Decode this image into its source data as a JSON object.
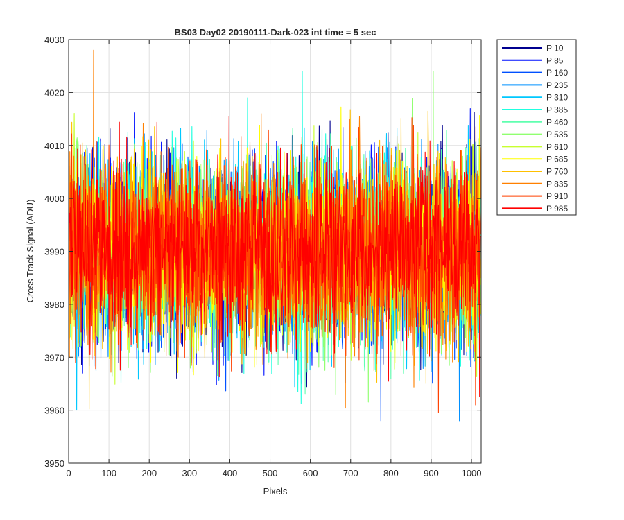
{
  "chart_data": {
    "type": "line",
    "title": "BS03 Day02 20190111-Dark-023 int time = 5 sec",
    "xlabel": "Pixels",
    "ylabel": "Cross Track Signal (ADU)",
    "xlim": [
      0,
      1024
    ],
    "ylim": [
      3950,
      4030
    ],
    "xticks": [
      0,
      100,
      200,
      300,
      400,
      500,
      600,
      700,
      800,
      900,
      1000
    ],
    "yticks": [
      3950,
      3960,
      3970,
      3980,
      3990,
      4000,
      4010,
      4020,
      4030
    ],
    "grid": true,
    "legend_position": "outside-top-right",
    "n_points": 1024,
    "mean_level": 3990,
    "series": [
      {
        "name": "P 10",
        "color": "#00008f",
        "seed": 11
      },
      {
        "name": "P 85",
        "color": "#0010ff",
        "seed": 23
      },
      {
        "name": "P 160",
        "color": "#0050ff",
        "seed": 37
      },
      {
        "name": "P 235",
        "color": "#0090ff",
        "seed": 41
      },
      {
        "name": "P 310",
        "color": "#00c8ff",
        "seed": 53
      },
      {
        "name": "P 385",
        "color": "#20ffe0",
        "seed": 67
      },
      {
        "name": "P 460",
        "color": "#60ffb0",
        "seed": 71
      },
      {
        "name": "P 535",
        "color": "#90ff70",
        "seed": 83
      },
      {
        "name": "P 610",
        "color": "#c8ff30",
        "seed": 97
      },
      {
        "name": "P 685",
        "color": "#ffff00",
        "seed": 101
      },
      {
        "name": "P 760",
        "color": "#ffc000",
        "seed": 113
      },
      {
        "name": "P 835",
        "color": "#ff8000",
        "seed": 127
      },
      {
        "name": "P 910",
        "color": "#ff4000",
        "seed": 131
      },
      {
        "name": "P 985",
        "color": "#ff0000",
        "seed": 149
      }
    ],
    "annotated_extremes": [
      {
        "series": "P 835",
        "x": 62,
        "y": 4028
      },
      {
        "series": "P 160",
        "x": 775,
        "y": 3958
      },
      {
        "series": "P 310",
        "x": 20,
        "y": 3960
      },
      {
        "series": "P 385",
        "x": 580,
        "y": 4024
      },
      {
        "series": "P 535",
        "x": 905,
        "y": 4024
      },
      {
        "series": "P 910",
        "x": 1010,
        "y": 3961
      },
      {
        "series": "P 235",
        "x": 970,
        "y": 3958
      }
    ]
  }
}
